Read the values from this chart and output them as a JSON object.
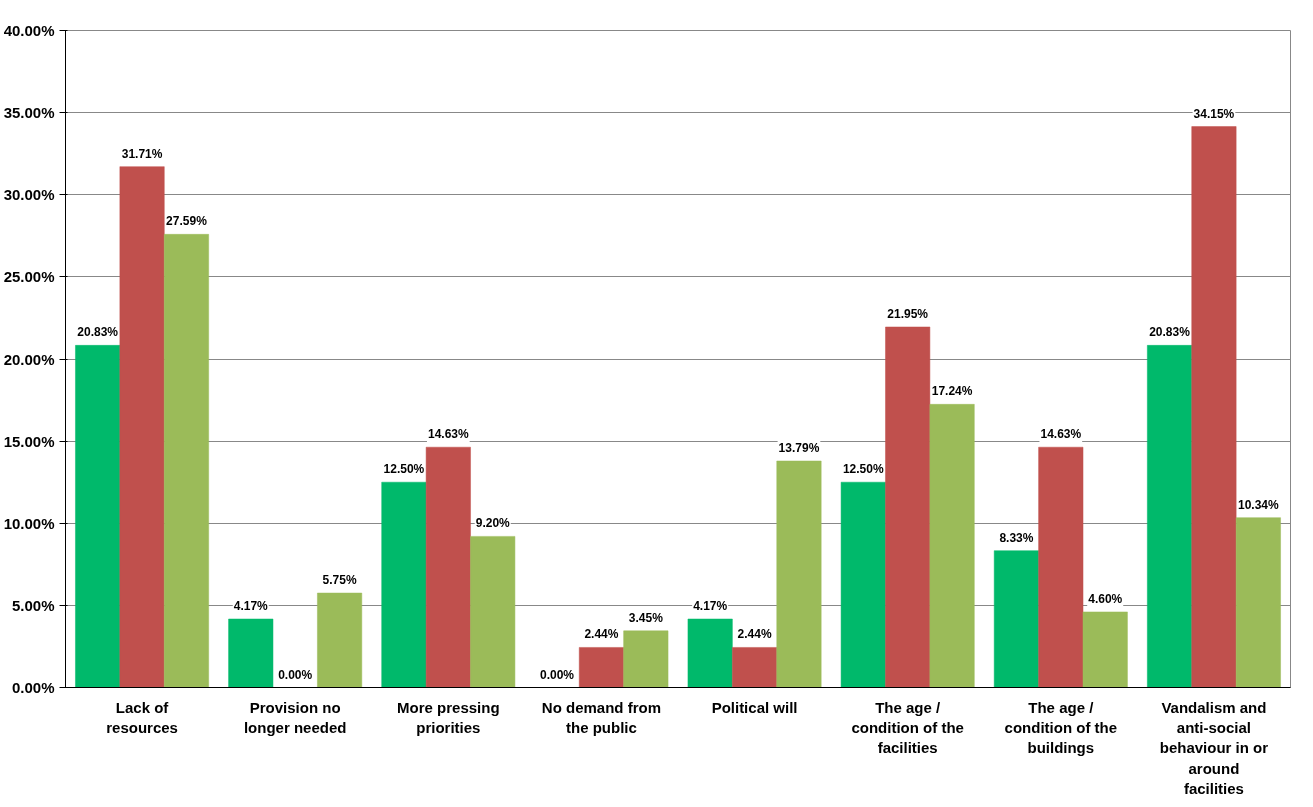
{
  "chart_data": {
    "type": "bar",
    "categories": [
      "Lack of resources",
      "Provision no longer needed",
      "More pressing priorities",
      "No demand from the public",
      "Political will",
      "The age / condition of the facilities",
      "The age / condition of the buildings",
      "Vandalism and anti-social behaviour in or around facilities"
    ],
    "series": [
      {
        "color": "#00b96b",
        "values": [
          20.83,
          4.17,
          12.5,
          0,
          4.17,
          12.5,
          8.33,
          20.83
        ],
        "value_labels": [
          "20.83%",
          "4.17%",
          "12.50%",
          "0.00%",
          "4.17%",
          "12.50%",
          "8.33%",
          "20.83%"
        ]
      },
      {
        "color": "#c0504d",
        "values": [
          31.71,
          0,
          14.63,
          2.44,
          2.44,
          21.95,
          14.63,
          34.15
        ],
        "value_labels": [
          "31.71%",
          "0.00%",
          "14.63%",
          "2.44%",
          "2.44%",
          "21.95%",
          "14.63%",
          "34.15%"
        ]
      },
      {
        "color": "#9bbb59",
        "values": [
          27.59,
          5.75,
          9.2,
          3.45,
          13.79,
          17.24,
          4.6,
          10.34
        ],
        "value_labels": [
          "27.59%",
          "5.75%",
          "9.20%",
          "3.45%",
          "13.79%",
          "17.24%",
          "4.60%",
          "10.34%"
        ]
      }
    ],
    "ylim": [
      0,
      40
    ],
    "yticks": [
      {
        "value": 0,
        "label": "0.00%"
      },
      {
        "value": 5,
        "label": "5.00%"
      },
      {
        "value": 10,
        "label": "10.00%"
      },
      {
        "value": 15,
        "label": "15.00%"
      },
      {
        "value": 20,
        "label": "20.00%"
      },
      {
        "value": 25,
        "label": "25.00%"
      },
      {
        "value": 30,
        "label": "30.00%"
      },
      {
        "value": 35,
        "label": "35.00%"
      },
      {
        "value": 40,
        "label": "40.00%"
      }
    ],
    "grid": "y"
  }
}
